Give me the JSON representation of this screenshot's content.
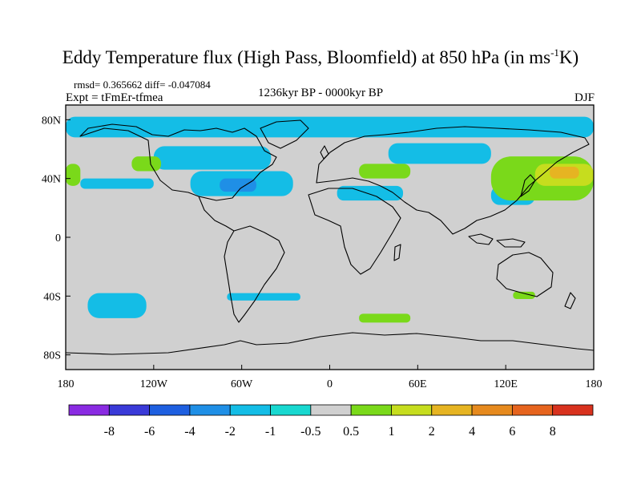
{
  "title": {
    "main": "Eddy Temperature flux (High Pass, Bloomfield) at 850 hPa (in ms",
    "sup": "-1",
    "end": "K)"
  },
  "stats": {
    "rmsd_line": "rmsd= 0.365662 diff= -0.047084",
    "expt_line": "Expt = tFmEr-tfmea",
    "period": "1236kyr BP - 0000kyr BP",
    "season": "DJF"
  },
  "chart_data": {
    "type": "map",
    "lon_ticks": [
      {
        "value": -180,
        "label": "180"
      },
      {
        "value": -120,
        "label": "120W"
      },
      {
        "value": -60,
        "label": "60W"
      },
      {
        "value": 0,
        "label": "0"
      },
      {
        "value": 60,
        "label": "60E"
      },
      {
        "value": 120,
        "label": "120E"
      },
      {
        "value": 180,
        "label": "180"
      }
    ],
    "lat_ticks": [
      {
        "value": 80,
        "label": "80N"
      },
      {
        "value": 40,
        "label": "40N"
      },
      {
        "value": 0,
        "label": "0"
      },
      {
        "value": -40,
        "label": "40S"
      },
      {
        "value": -80,
        "label": "80S"
      }
    ],
    "lon_range": [
      -180,
      180
    ],
    "lat_range": [
      -90,
      90
    ],
    "background_color": "#d0d0d0",
    "colorbar": {
      "labels": [
        "-8",
        "-6",
        "-4",
        "-2",
        "-1",
        "-0.5",
        "0.5",
        "1",
        "2",
        "4",
        "6",
        "8"
      ],
      "colors": [
        "#8a2be2",
        "#3a3ad8",
        "#1e5fe0",
        "#1f8fe6",
        "#14bde6",
        "#18d8d0",
        "#d0d0d0",
        "#7ad91a",
        "#c6dd1e",
        "#e6b422",
        "#e68a1e",
        "#e6641e",
        "#d8321e"
      ]
    },
    "regions": [
      {
        "level": "-1",
        "color": "#14bde6",
        "lon": [
          -180,
          180
        ],
        "lat": [
          68,
          82
        ]
      },
      {
        "level": "-1",
        "color": "#14bde6",
        "lon": [
          -170,
          -120
        ],
        "lat": [
          33,
          40
        ]
      },
      {
        "level": "-1",
        "color": "#14bde6",
        "lon": [
          -95,
          -25
        ],
        "lat": [
          28,
          45
        ]
      },
      {
        "level": "-2",
        "color": "#1f8fe6",
        "lon": [
          -75,
          -50
        ],
        "lat": [
          31,
          40
        ]
      },
      {
        "level": "-1",
        "color": "#14bde6",
        "lon": [
          -120,
          -40
        ],
        "lat": [
          46,
          62
        ]
      },
      {
        "level": "-1",
        "color": "#14bde6",
        "lon": [
          -70,
          -20
        ],
        "lat": [
          -43,
          -38
        ]
      },
      {
        "level": "-1",
        "color": "#14bde6",
        "lon": [
          -165,
          -125
        ],
        "lat": [
          -55,
          -38
        ]
      },
      {
        "level": "-1",
        "color": "#14bde6",
        "lon": [
          5,
          50
        ],
        "lat": [
          25,
          35
        ]
      },
      {
        "level": "-1",
        "color": "#14bde6",
        "lon": [
          40,
          110
        ],
        "lat": [
          50,
          64
        ]
      },
      {
        "level": "-1",
        "color": "#14bde6",
        "lon": [
          110,
          140
        ],
        "lat": [
          22,
          35
        ]
      },
      {
        "level": "1",
        "color": "#7ad91a",
        "lon": [
          -180,
          -170
        ],
        "lat": [
          35,
          50
        ]
      },
      {
        "level": "1",
        "color": "#7ad91a",
        "lon": [
          -135,
          -115
        ],
        "lat": [
          45,
          55
        ]
      },
      {
        "level": "1",
        "color": "#7ad91a",
        "lon": [
          20,
          55
        ],
        "lat": [
          40,
          50
        ]
      },
      {
        "level": "1",
        "color": "#7ad91a",
        "lon": [
          110,
          180
        ],
        "lat": [
          25,
          55
        ]
      },
      {
        "level": "2",
        "color": "#c6dd1e",
        "lon": [
          140,
          180
        ],
        "lat": [
          35,
          50
        ]
      },
      {
        "level": "4",
        "color": "#e6b422",
        "lon": [
          150,
          170
        ],
        "lat": [
          40,
          48
        ]
      },
      {
        "level": "1",
        "color": "#7ad91a",
        "lon": [
          20,
          55
        ],
        "lat": [
          -58,
          -52
        ]
      },
      {
        "level": "1",
        "color": "#7ad91a",
        "lon": [
          125,
          140
        ],
        "lat": [
          -42,
          -37
        ]
      }
    ]
  }
}
